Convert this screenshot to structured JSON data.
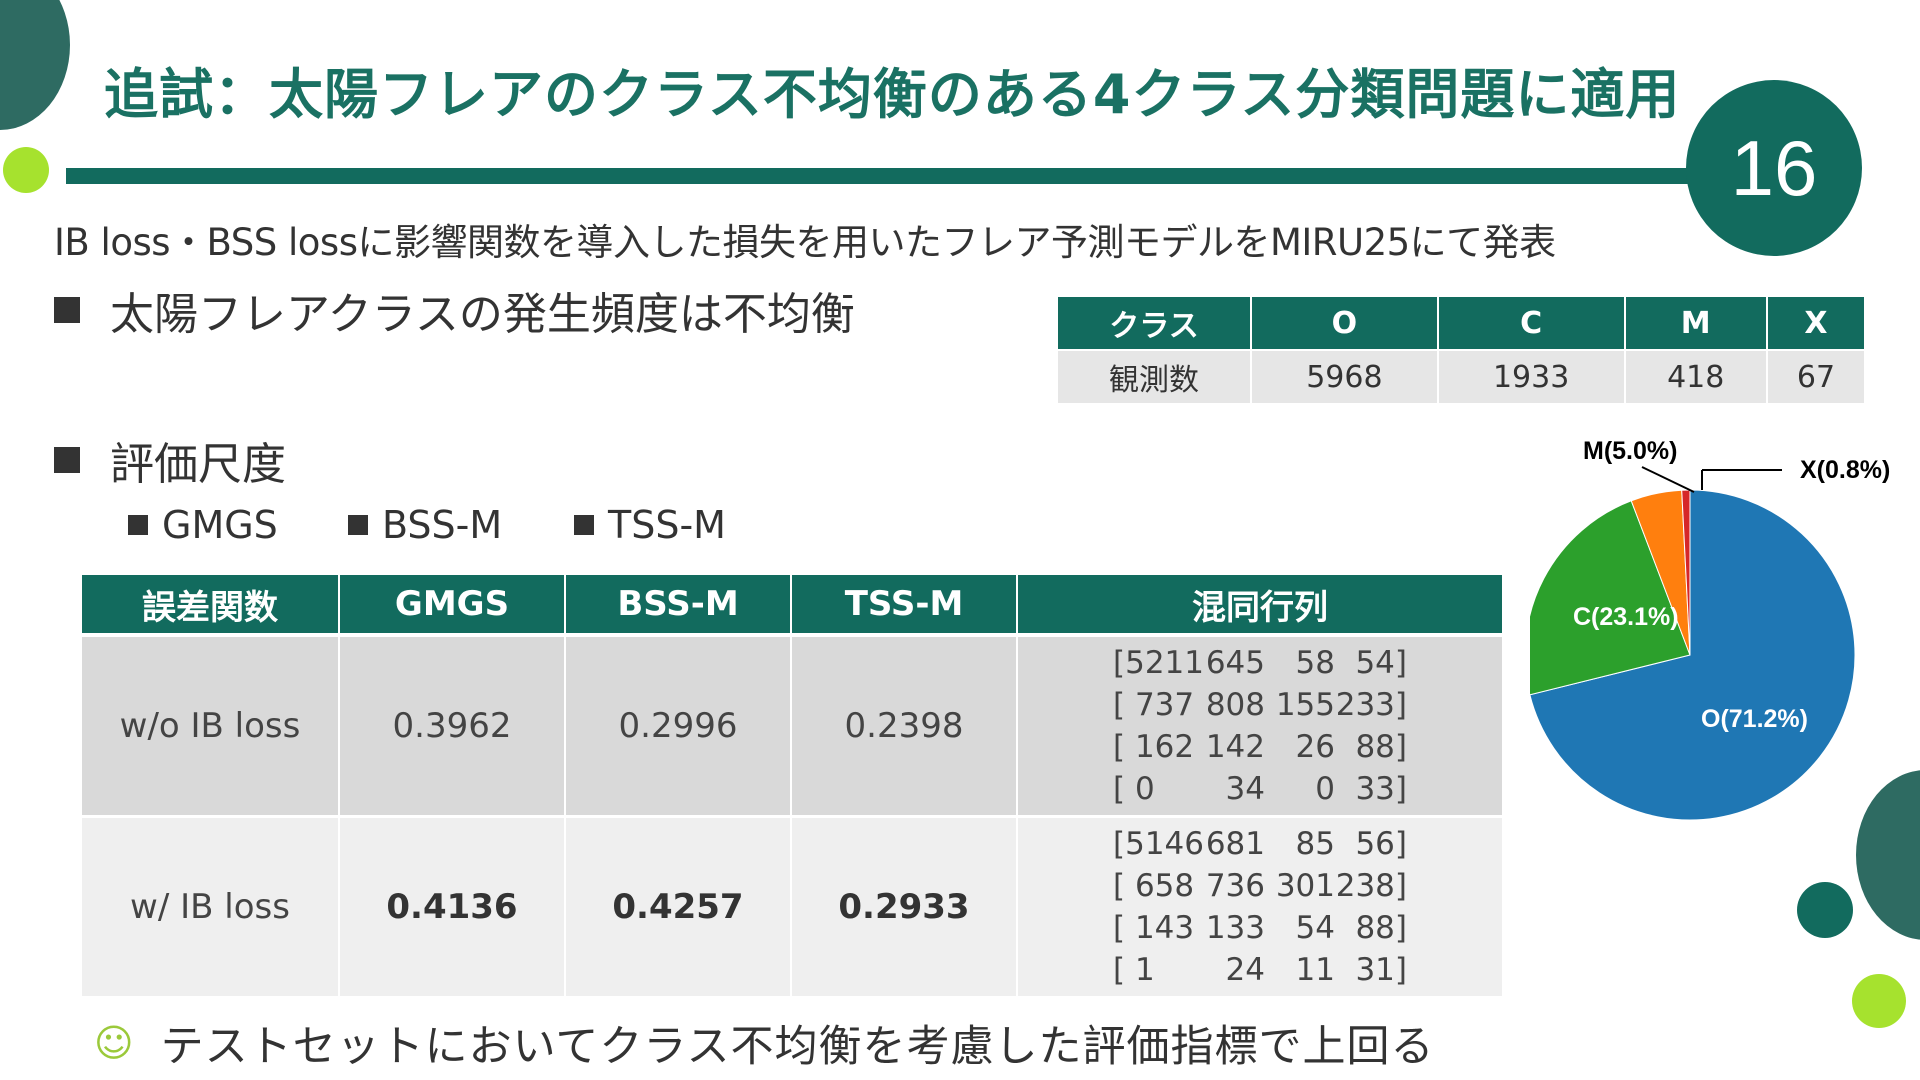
{
  "title": "追試：太陽フレアのクラス不均衡のある4クラス分類問題に適用",
  "page_number": "16",
  "subtitle": "IB loss・BSS lossに影響関数を導入した損失を用いたフレア予測モデルをMIRU25にて発表",
  "bullets": {
    "imbalance": "太陽フレアクラスの発生頻度は不均衡",
    "metrics": "評価尺度"
  },
  "metric_items": [
    "GMGS",
    "BSS-M",
    "TSS-M"
  ],
  "class_table": {
    "headers": [
      "クラス",
      "O",
      "C",
      "M",
      "X"
    ],
    "row_label": "観測数",
    "counts": [
      "5968",
      "1933",
      "418",
      "67"
    ]
  },
  "results_table": {
    "headers": [
      "誤差関数",
      "GMGS",
      "BSS-M",
      "TSS-M",
      "混同行列"
    ],
    "rows": [
      {
        "label": "w/o IB loss",
        "gmgs": "0.3962",
        "bss": "0.2996",
        "tss": "0.2398",
        "matrix": [
          [
            "[5211",
            "645",
            "58",
            "54]"
          ],
          [
            "[ 737",
            "808",
            "155",
            "233]"
          ],
          [
            "[  162",
            "142",
            "26",
            "88]"
          ],
          [
            "[     0",
            "34",
            "0",
            "33]"
          ]
        ]
      },
      {
        "label": "w/ IB loss",
        "gmgs": "0.4136",
        "bss": "0.4257",
        "tss": "0.2933",
        "matrix": [
          [
            "[5146",
            "681",
            "85",
            "56]"
          ],
          [
            "[ 658",
            "736",
            "301",
            "238]"
          ],
          [
            "[ 143",
            "133",
            "54",
            "88]"
          ],
          [
            "[    1",
            "24",
            "11",
            "31]"
          ]
        ]
      }
    ]
  },
  "conclusion": "テストセットにおいてクラス不均衡を考慮した評価指標で上回る",
  "conclusion_icon": "smiley-icon",
  "chart_data": {
    "type": "pie",
    "title": "",
    "slices": [
      {
        "name": "O",
        "label": "O(71.2%)",
        "value": 71.2,
        "color": "#1f77b4"
      },
      {
        "name": "C",
        "label": "C(23.1%)",
        "value": 23.1,
        "color": "#2ca02c"
      },
      {
        "name": "M",
        "label": "M(5.0%)",
        "value": 5.0,
        "color": "#ff7f0e"
      },
      {
        "name": "X",
        "label": "X(0.8%)",
        "value": 0.8,
        "color": "#d62728"
      }
    ],
    "start": "top",
    "direction": "clockwise",
    "legend": "none"
  },
  "colors": {
    "accent": "#126b5e",
    "title_text": "#1a7163",
    "lime": "#a6e22e"
  }
}
